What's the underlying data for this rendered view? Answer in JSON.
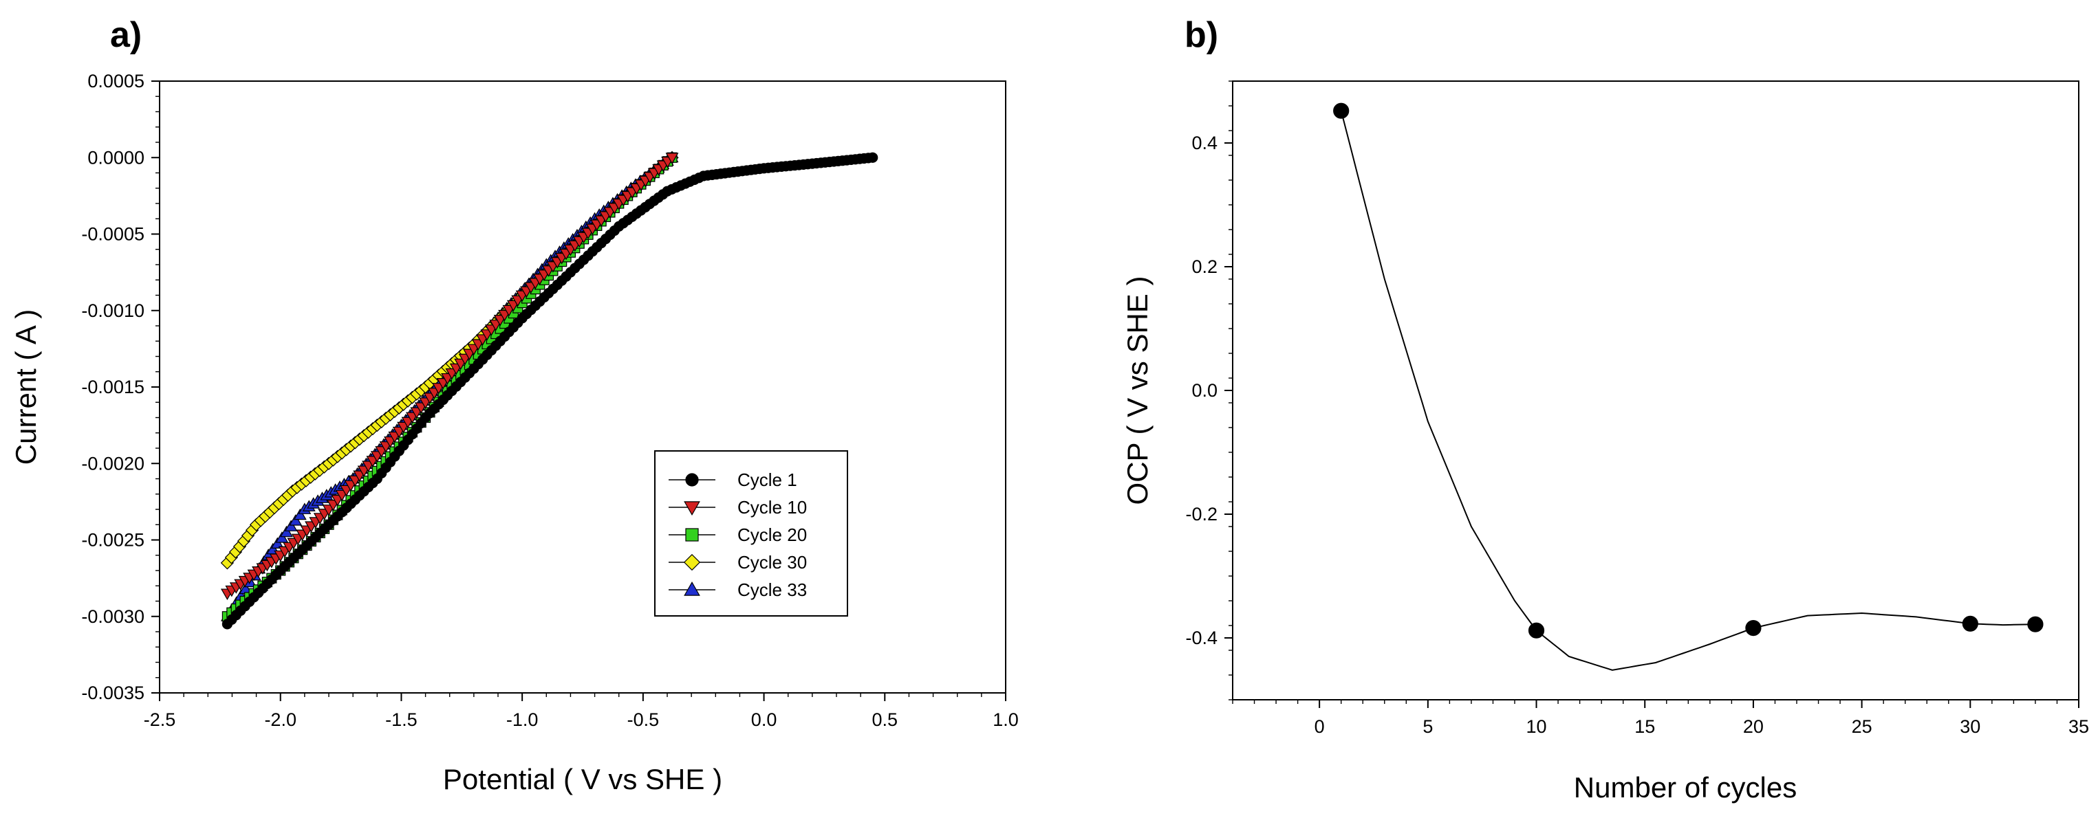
{
  "chart_data": [
    {
      "panel_label": "a)",
      "type": "scatter",
      "xlabel": "Potential ( V vs SHE )",
      "ylabel": "Current ( A )",
      "xlim": [
        -2.5,
        1.0
      ],
      "ylim": [
        -0.0035,
        0.0005
      ],
      "xticks": [
        -2.5,
        -2.0,
        -1.5,
        -1.0,
        -0.5,
        0.0,
        0.5,
        1.0
      ],
      "xtick_labels": [
        "-2.5",
        "-2.0",
        "-1.5",
        "-1.0",
        "-0.5",
        "0.0",
        "0.5",
        "1.0"
      ],
      "yticks": [
        0.0005,
        0.0,
        -0.0005,
        -0.001,
        -0.0015,
        -0.002,
        -0.0025,
        -0.003,
        -0.0035
      ],
      "ytick_labels": [
        "0.0005",
        "0.0000",
        "-0.0005",
        "-0.0010",
        "-0.0015",
        "-0.0020",
        "-0.0025",
        "-0.0030",
        "-0.0035"
      ],
      "legend_position": "lower-right",
      "series": [
        {
          "name": "Cycle 1",
          "marker": "circle",
          "color": "#000000",
          "points": [
            [
              -2.22,
              -0.00305
            ],
            [
              -2.0,
              -0.0027
            ],
            [
              -1.8,
              -0.0024
            ],
            [
              -1.6,
              -0.0021
            ],
            [
              -1.4,
              -0.0017
            ],
            [
              -1.2,
              -0.00138
            ],
            [
              -1.0,
              -0.00105
            ],
            [
              -0.8,
              -0.00075
            ],
            [
              -0.6,
              -0.00045
            ],
            [
              -0.4,
              -0.00022
            ],
            [
              -0.25,
              -0.00012
            ],
            [
              0.0,
              -7e-05
            ],
            [
              0.2,
              -4e-05
            ],
            [
              0.45,
              0.0
            ]
          ]
        },
        {
          "name": "Cycle 10",
          "marker": "triangle-down",
          "color": "#d32020",
          "points": [
            [
              -2.22,
              -0.00285
            ],
            [
              -2.0,
              -0.0026
            ],
            [
              -1.8,
              -0.0023
            ],
            [
              -1.6,
              -0.00195
            ],
            [
              -1.4,
              -0.0016
            ],
            [
              -1.2,
              -0.00125
            ],
            [
              -1.0,
              -0.0009
            ],
            [
              -0.8,
              -0.0006
            ],
            [
              -0.6,
              -0.0003
            ],
            [
              -0.38,
              0.0
            ]
          ]
        },
        {
          "name": "Cycle 20",
          "marker": "square",
          "color": "#33d11e",
          "points": [
            [
              -2.22,
              -0.003
            ],
            [
              -2.0,
              -0.0027
            ],
            [
              -1.8,
              -0.0024
            ],
            [
              -1.6,
              -0.00205
            ],
            [
              -1.4,
              -0.0017
            ],
            [
              -1.2,
              -0.00132
            ],
            [
              -1.0,
              -0.00095
            ],
            [
              -0.8,
              -0.00062
            ],
            [
              -0.6,
              -0.0003
            ],
            [
              -0.38,
              0.0
            ]
          ]
        },
        {
          "name": "Cycle 30",
          "marker": "diamond",
          "color": "#f2ec14",
          "points": [
            [
              -2.22,
              -0.00265
            ],
            [
              -2.1,
              -0.0024
            ],
            [
              -1.95,
              -0.00218
            ],
            [
              -1.8,
              -0.002
            ],
            [
              -1.6,
              -0.00175
            ],
            [
              -1.4,
              -0.0015
            ],
            [
              -1.2,
              -0.00122
            ],
            [
              -1.0,
              -0.0009
            ],
            [
              -0.8,
              -0.0006
            ],
            [
              -0.6,
              -0.0003
            ],
            [
              -0.38,
              0.0
            ]
          ]
        },
        {
          "name": "Cycle 33",
          "marker": "triangle-up",
          "color": "#1f2fcf",
          "points": [
            [
              -2.22,
              -0.003
            ],
            [
              -2.05,
              -0.0026
            ],
            [
              -1.9,
              -0.0023
            ],
            [
              -1.7,
              -0.0021
            ],
            [
              -1.5,
              -0.00175
            ],
            [
              -1.3,
              -0.0014
            ],
            [
              -1.1,
              -0.00105
            ],
            [
              -0.9,
              -0.0007
            ],
            [
              -0.7,
              -0.0004
            ],
            [
              -0.55,
              -0.0002
            ],
            [
              -0.38,
              0.0
            ]
          ]
        }
      ]
    },
    {
      "panel_label": "b)",
      "type": "line",
      "xlabel": "Number of cycles",
      "ylabel": "OCP ( V vs SHE )",
      "xlim": [
        -4,
        35
      ],
      "ylim": [
        -0.5,
        0.5
      ],
      "xticks": [
        0,
        5,
        10,
        15,
        20,
        25,
        30,
        35
      ],
      "xtick_labels": [
        "0",
        "5",
        "10",
        "15",
        "20",
        "25",
        "30",
        "35"
      ],
      "yticks": [
        0.4,
        0.2,
        0.0,
        -0.2,
        -0.4
      ],
      "ytick_labels": [
        "0.4",
        "0.2",
        "0.0",
        "-0.2",
        "-0.4"
      ],
      "series": [
        {
          "name": "OCP",
          "marker": "circle",
          "color": "#000000",
          "points": [
            [
              1,
              0.452
            ],
            [
              10,
              -0.388
            ],
            [
              20,
              -0.384
            ],
            [
              30,
              -0.377
            ],
            [
              33,
              -0.378
            ]
          ],
          "curve": [
            [
              1,
              0.452
            ],
            [
              3,
              0.18
            ],
            [
              5,
              -0.05
            ],
            [
              7,
              -0.22
            ],
            [
              9,
              -0.34
            ],
            [
              10,
              -0.388
            ],
            [
              11.5,
              -0.43
            ],
            [
              13.5,
              -0.452
            ],
            [
              15.5,
              -0.44
            ],
            [
              18,
              -0.41
            ],
            [
              20,
              -0.384
            ],
            [
              22.5,
              -0.364
            ],
            [
              25,
              -0.36
            ],
            [
              27.5,
              -0.366
            ],
            [
              30,
              -0.377
            ],
            [
              31.5,
              -0.379
            ],
            [
              33,
              -0.378
            ]
          ]
        }
      ]
    }
  ]
}
